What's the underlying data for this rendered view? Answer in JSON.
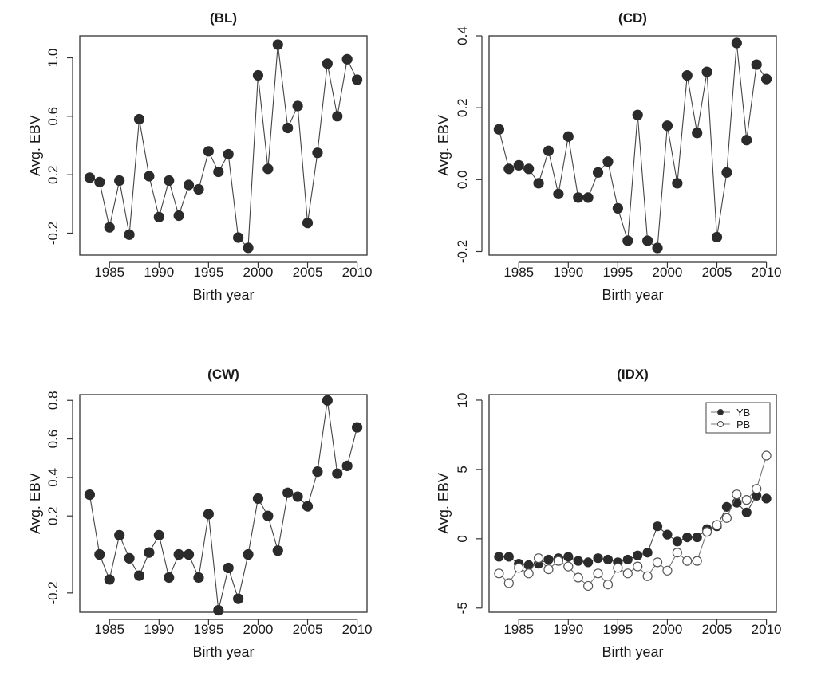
{
  "chart_data": [
    {
      "type": "line",
      "title": "(BL)",
      "xlabel": "Birth year",
      "ylabel": "Avg. EBV",
      "xlim": [
        1982,
        2011
      ],
      "ylim": [
        -0.35,
        1.15
      ],
      "xticks": [
        1985,
        1990,
        1995,
        2000,
        2005,
        2010
      ],
      "yticks": [
        -0.2,
        0.2,
        0.6,
        1.0
      ],
      "ytick_labels": [
        "-0.2",
        "0.2",
        "0.6",
        "1.0"
      ],
      "grid": false,
      "series": [
        {
          "marker": "filled-circle",
          "x": [
            1983,
            1984,
            1985,
            1986,
            1987,
            1988,
            1989,
            1990,
            1991,
            1992,
            1993,
            1994,
            1995,
            1996,
            1997,
            1998,
            1999,
            2000,
            2001,
            2002,
            2003,
            2004,
            2005,
            2006,
            2007,
            2008,
            2009,
            2010
          ],
          "y": [
            0.18,
            0.15,
            -0.16,
            0.16,
            -0.21,
            0.58,
            0.19,
            -0.09,
            0.16,
            -0.08,
            0.13,
            0.1,
            0.36,
            0.22,
            0.34,
            -0.23,
            -0.3,
            0.88,
            0.24,
            1.09,
            0.52,
            0.67,
            -0.13,
            0.35,
            0.96,
            0.6,
            0.99,
            0.85
          ]
        }
      ]
    },
    {
      "type": "line",
      "title": "(CD)",
      "xlabel": "Birth year",
      "ylabel": "Avg. EBV",
      "xlim": [
        1982,
        2011
      ],
      "ylim": [
        -0.21,
        0.4
      ],
      "xticks": [
        1985,
        1990,
        1995,
        2000,
        2005,
        2010
      ],
      "yticks": [
        -0.2,
        0.0,
        0.2,
        0.4
      ],
      "ytick_labels": [
        "-0.2",
        "0.0",
        "0.2",
        "0.4"
      ],
      "grid": false,
      "series": [
        {
          "marker": "filled-circle",
          "x": [
            1983,
            1984,
            1985,
            1986,
            1987,
            1988,
            1989,
            1990,
            1991,
            1992,
            1993,
            1994,
            1995,
            1996,
            1997,
            1998,
            1999,
            2000,
            2001,
            2002,
            2003,
            2004,
            2005,
            2006,
            2007,
            2008,
            2009,
            2010
          ],
          "y": [
            0.14,
            0.03,
            0.04,
            0.03,
            -0.01,
            0.08,
            -0.04,
            0.12,
            -0.05,
            -0.05,
            0.02,
            0.05,
            -0.08,
            -0.17,
            0.18,
            -0.17,
            -0.19,
            0.15,
            -0.01,
            0.29,
            0.13,
            0.3,
            -0.16,
            0.02,
            0.38,
            0.11,
            0.32,
            0.28
          ]
        }
      ]
    },
    {
      "type": "line",
      "title": "(CW)",
      "xlabel": "Birth year",
      "ylabel": "Avg. EBV",
      "xlim": [
        1982,
        2011
      ],
      "ylim": [
        -0.3,
        0.83
      ],
      "xticks": [
        1985,
        1990,
        1995,
        2000,
        2005,
        2010
      ],
      "yticks": [
        -0.2,
        0.2,
        0.4,
        0.6,
        0.8
      ],
      "ytick_labels": [
        "-0.2",
        "0.2",
        "0.4",
        "0.6",
        "0.8"
      ],
      "grid": false,
      "series": [
        {
          "marker": "filled-circle",
          "x": [
            1983,
            1984,
            1985,
            1986,
            1987,
            1988,
            1989,
            1990,
            1991,
            1992,
            1993,
            1994,
            1995,
            1996,
            1997,
            1998,
            1999,
            2000,
            2001,
            2002,
            2003,
            2004,
            2005,
            2006,
            2007,
            2008,
            2009,
            2010
          ],
          "y": [
            0.31,
            0.0,
            -0.13,
            0.1,
            -0.02,
            -0.11,
            0.01,
            0.1,
            -0.12,
            0.0,
            0.0,
            -0.12,
            0.21,
            -0.29,
            -0.07,
            -0.23,
            0.0,
            0.29,
            0.2,
            0.02,
            0.32,
            0.3,
            0.25,
            0.43,
            0.8,
            0.42,
            0.46,
            0.66
          ]
        }
      ]
    },
    {
      "type": "line",
      "title": "(IDX)",
      "xlabel": "Birth year",
      "ylabel": "Avg. EBV",
      "xlim": [
        1982,
        2011
      ],
      "ylim": [
        -5.3,
        10.4
      ],
      "xticks": [
        1985,
        1990,
        1995,
        2000,
        2005,
        2010
      ],
      "yticks": [
        -5,
        0,
        5,
        10
      ],
      "ytick_labels": [
        "-5",
        "0",
        "5",
        "10"
      ],
      "grid": false,
      "legend": {
        "position": "top-right",
        "labels": [
          "YB",
          "PB"
        ]
      },
      "series": [
        {
          "name": "YB",
          "marker": "filled-circle",
          "x": [
            1983,
            1984,
            1985,
            1986,
            1987,
            1988,
            1989,
            1990,
            1991,
            1992,
            1993,
            1994,
            1995,
            1996,
            1997,
            1998,
            1999,
            2000,
            2001,
            2002,
            2003,
            2004,
            2005,
            2006,
            2007,
            2008,
            2009,
            2010
          ],
          "y": [
            -1.3,
            -1.3,
            -1.8,
            -1.9,
            -1.8,
            -1.5,
            -1.4,
            -1.3,
            -1.6,
            -1.7,
            -1.4,
            -1.5,
            -1.7,
            -1.5,
            -1.2,
            -1.0,
            0.9,
            0.3,
            -0.2,
            0.1,
            0.1,
            0.7,
            0.9,
            2.3,
            2.6,
            1.9,
            3.1,
            2.9
          ]
        },
        {
          "name": "PB",
          "marker": "open-circle",
          "x": [
            1983,
            1984,
            1985,
            1986,
            1987,
            1988,
            1989,
            1990,
            1991,
            1992,
            1993,
            1994,
            1995,
            1996,
            1997,
            1998,
            1999,
            2000,
            2001,
            2002,
            2003,
            2004,
            2005,
            2006,
            2007,
            2008,
            2009,
            2010
          ],
          "y": [
            -2.5,
            -3.2,
            -2.1,
            -2.5,
            -1.4,
            -2.2,
            -1.6,
            -2.0,
            -2.8,
            -3.4,
            -2.5,
            -3.3,
            -2.1,
            -2.5,
            -2.0,
            -2.7,
            -1.7,
            -2.3,
            -1.0,
            -1.6,
            -1.6,
            0.5,
            1.0,
            1.5,
            3.2,
            2.8,
            3.6,
            6.0
          ]
        }
      ]
    }
  ]
}
